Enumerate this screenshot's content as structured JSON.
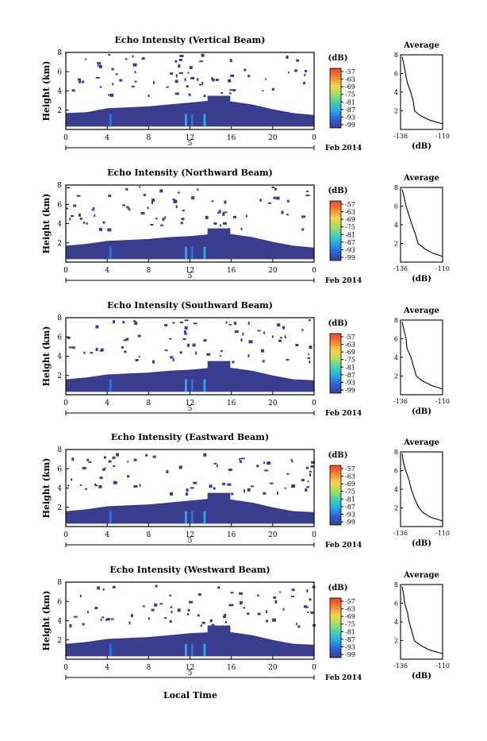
{
  "figure": {
    "xlabel": "Local Time",
    "date_label": "Feb 2014",
    "colorbar_unit": "(dB)",
    "colorbar_ticks": [
      "-57",
      "-63",
      "-69",
      "-75",
      "-81",
      "-87",
      "-93",
      "-99"
    ],
    "colorbar_colors": [
      "#f0402a",
      "#f8852d",
      "#f7d44b",
      "#a8e060",
      "#43d3b3",
      "#27a8e8",
      "#2e5fd3",
      "#3a3f8f"
    ],
    "background_color": "#ffffff",
    "echo_color": "#3a3d8e"
  },
  "chart_data": [
    {
      "type": "heatmap",
      "title": "Echo Intensity (Vertical Beam)",
      "ylabel": "Height (km)",
      "x_ticks": [
        "0",
        "4",
        "8",
        "12",
        "16",
        "20",
        "0"
      ],
      "x_day_label": "5",
      "y_ticks": [
        "2",
        "4",
        "6",
        "8"
      ],
      "xlim": [
        0,
        24
      ],
      "ylim": [
        0,
        8
      ],
      "echo_top_km": [
        1.7,
        1.8,
        2.2,
        2.3,
        2.4,
        2.6,
        2.8,
        3.0,
        2.9,
        2.6,
        2.1,
        1.7,
        1.5
      ],
      "average_profile": {
        "title": "Average",
        "xlabel": "(dB)",
        "x_ticks": [
          "-136",
          "-110"
        ],
        "y_ticks": [
          "2",
          "4",
          "6",
          "8"
        ],
        "xlim": [
          -136,
          -110
        ],
        "ylim": [
          0,
          8
        ],
        "height_km": [
          0.6,
          1.0,
          1.5,
          2.0,
          3.0,
          4.0,
          5.0,
          6.0,
          7.0,
          7.8
        ],
        "db": [
          -110,
          -118,
          -124,
          -127,
          -128,
          -130,
          -132,
          -133,
          -134,
          -135
        ]
      }
    },
    {
      "type": "heatmap",
      "title": "Echo Intensity (Northward Beam)",
      "ylabel": "Height (km)",
      "x_ticks": [
        "0",
        "4",
        "8",
        "12",
        "16",
        "20",
        "0"
      ],
      "x_day_label": "5",
      "y_ticks": [
        "2",
        "4",
        "6",
        "8"
      ],
      "xlim": [
        0,
        24
      ],
      "ylim": [
        0,
        8
      ],
      "echo_top_km": [
        1.7,
        1.9,
        2.2,
        2.3,
        2.4,
        2.6,
        2.7,
        2.9,
        2.9,
        2.6,
        2.1,
        1.7,
        1.5
      ],
      "average_profile": {
        "title": "Average",
        "xlabel": "(dB)",
        "x_ticks": [
          "-136",
          "-110"
        ],
        "y_ticks": [
          "2",
          "4",
          "6",
          "8"
        ],
        "xlim": [
          -136,
          -110
        ],
        "ylim": [
          0,
          8
        ],
        "height_km": [
          0.6,
          1.0,
          1.5,
          2.0,
          3.0,
          4.0,
          5.0,
          6.0,
          7.0,
          7.8
        ],
        "db": [
          -110,
          -117,
          -122,
          -125,
          -127,
          -129,
          -131,
          -133,
          -134,
          -135
        ]
      }
    },
    {
      "type": "heatmap",
      "title": "Echo Intensity (Southward Beam)",
      "ylabel": "Height (km)",
      "x_ticks": [
        "0",
        "4",
        "8",
        "12",
        "16",
        "20",
        "0"
      ],
      "x_day_label": "5",
      "y_ticks": [
        "2",
        "4",
        "6",
        "8"
      ],
      "xlim": [
        0,
        24
      ],
      "ylim": [
        0,
        8
      ],
      "echo_top_km": [
        1.6,
        1.8,
        2.1,
        2.2,
        2.3,
        2.5,
        2.6,
        2.8,
        2.8,
        2.5,
        2.0,
        1.6,
        1.5
      ],
      "average_profile": {
        "title": "Average",
        "xlabel": "(dB)",
        "x_ticks": [
          "-136",
          "-110"
        ],
        "y_ticks": [
          "2",
          "4",
          "6",
          "8"
        ],
        "xlim": [
          -136,
          -110
        ],
        "ylim": [
          0,
          8
        ],
        "height_km": [
          0.6,
          1.0,
          1.5,
          2.0,
          3.0,
          4.0,
          5.0,
          6.0,
          7.0,
          7.8
        ],
        "db": [
          -110,
          -117,
          -123,
          -126,
          -128,
          -130,
          -132,
          -133,
          -134,
          -135
        ]
      }
    },
    {
      "type": "heatmap",
      "title": "Echo Intensity (Eastward Beam)",
      "ylabel": "Height (km)",
      "x_ticks": [
        "0",
        "4",
        "8",
        "12",
        "16",
        "20",
        "0"
      ],
      "x_day_label": "5",
      "y_ticks": [
        "2",
        "4",
        "6",
        "8"
      ],
      "xlim": [
        0,
        24
      ],
      "ylim": [
        0,
        8
      ],
      "echo_top_km": [
        1.6,
        1.8,
        2.1,
        2.2,
        2.3,
        2.5,
        2.7,
        2.9,
        2.8,
        2.5,
        2.0,
        1.6,
        1.5
      ],
      "average_profile": {
        "title": "Average",
        "xlabel": "(dB)",
        "x_ticks": [
          "-136",
          "-110"
        ],
        "y_ticks": [
          "2",
          "4",
          "6",
          "8"
        ],
        "xlim": [
          -136,
          -110
        ],
        "ylim": [
          0,
          8
        ],
        "height_km": [
          0.6,
          1.0,
          1.5,
          2.0,
          3.0,
          4.0,
          5.0,
          6.0,
          7.0,
          7.8
        ],
        "db": [
          -110,
          -117,
          -122,
          -125,
          -127,
          -129,
          -131,
          -133,
          -134,
          -135
        ]
      }
    },
    {
      "type": "heatmap",
      "title": "Echo Intensity (Westward Beam)",
      "ylabel": "Height (km)",
      "x_ticks": [
        "0",
        "4",
        "8",
        "12",
        "16",
        "20",
        "0"
      ],
      "x_day_label": "5",
      "y_ticks": [
        "2",
        "4",
        "6",
        "8"
      ],
      "xlim": [
        0,
        24
      ],
      "ylim": [
        0,
        8
      ],
      "echo_top_km": [
        1.6,
        1.8,
        2.1,
        2.2,
        2.3,
        2.5,
        2.7,
        2.8,
        2.8,
        2.5,
        2.0,
        1.6,
        1.5
      ],
      "average_profile": {
        "title": "Average",
        "xlabel": "(dB)",
        "x_ticks": [
          "-136",
          "-110"
        ],
        "y_ticks": [
          "2",
          "4",
          "6",
          "8"
        ],
        "xlim": [
          -136,
          -110
        ],
        "ylim": [
          0,
          8
        ],
        "height_km": [
          0.6,
          1.0,
          1.5,
          2.0,
          3.0,
          4.0,
          5.0,
          6.0,
          7.0,
          7.8
        ],
        "db": [
          -110,
          -118,
          -124,
          -127,
          -129,
          -131,
          -132,
          -133,
          -134,
          -135
        ]
      }
    }
  ]
}
